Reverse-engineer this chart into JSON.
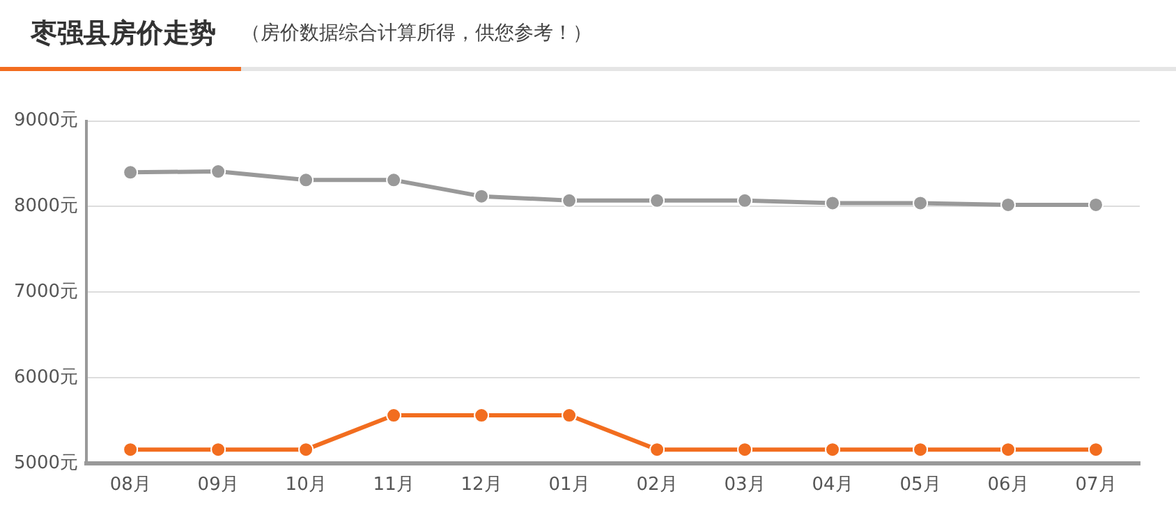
{
  "chart_data": {
    "type": "line",
    "title": "枣强县房价走势",
    "subtitle": "（房价数据综合计算所得，供您参考！）",
    "categories": [
      "08月",
      "09月",
      "10月",
      "11月",
      "12月",
      "01月",
      "02月",
      "03月",
      "04月",
      "05月",
      "06月",
      "07月"
    ],
    "series": [
      {
        "color": "#999999",
        "values": [
          8400,
          8410,
          8310,
          8310,
          8120,
          8070,
          8070,
          8070,
          8040,
          8040,
          8020,
          8020
        ]
      },
      {
        "color": "#f26d1f",
        "values": [
          5160,
          5160,
          5160,
          5560,
          5560,
          5560,
          5160,
          5160,
          5160,
          5160,
          5160,
          5160
        ]
      }
    ],
    "ylim": [
      5000,
      9000
    ],
    "yticks": [
      {
        "value": 5000,
        "label": "5000元"
      },
      {
        "value": 6000,
        "label": "6000元"
      },
      {
        "value": 7000,
        "label": "7000元"
      },
      {
        "value": 8000,
        "label": "8000元"
      },
      {
        "value": 9000,
        "label": "9000元"
      }
    ],
    "grid": "y",
    "legend": false,
    "marker": "circle",
    "line_style": "solid"
  }
}
